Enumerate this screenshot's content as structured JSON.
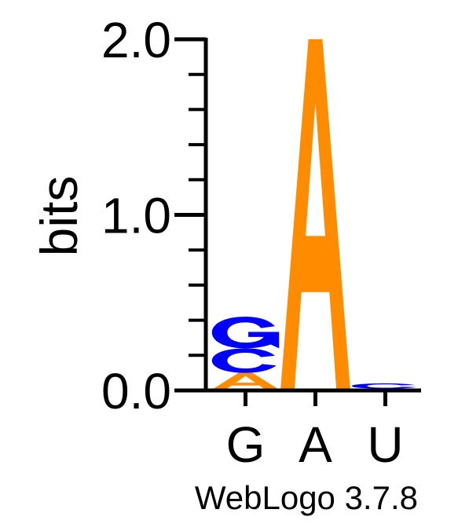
{
  "chart_data": {
    "type": "sequence-logo",
    "ylabel": "bits",
    "ylim": [
      0,
      2.0
    ],
    "y_ticks": [
      {
        "value": 0,
        "label": "0.0"
      },
      {
        "value": 1,
        "label": "1.0"
      },
      {
        "value": 2,
        "label": "2.0"
      }
    ],
    "y_minor_step": 0.2,
    "positions": [
      {
        "label": "G",
        "stack": [
          {
            "letter": "A",
            "bits": 0.1,
            "color": "#ff8c00"
          },
          {
            "letter": "C",
            "bits": 0.14,
            "color": "#0000ff"
          },
          {
            "letter": "G",
            "bits": 0.18,
            "color": "#0000ff"
          }
        ]
      },
      {
        "label": "A",
        "stack": [
          {
            "letter": "A",
            "bits": 2.0,
            "color": "#ff8c00"
          }
        ]
      },
      {
        "label": "U",
        "stack": [
          {
            "letter": "A",
            "bits": 0.01,
            "color": "#ff8c00"
          },
          {
            "letter": "C",
            "bits": 0.03,
            "color": "#0000ff"
          }
        ]
      }
    ],
    "footer": "WebLogo 3.7.8"
  }
}
